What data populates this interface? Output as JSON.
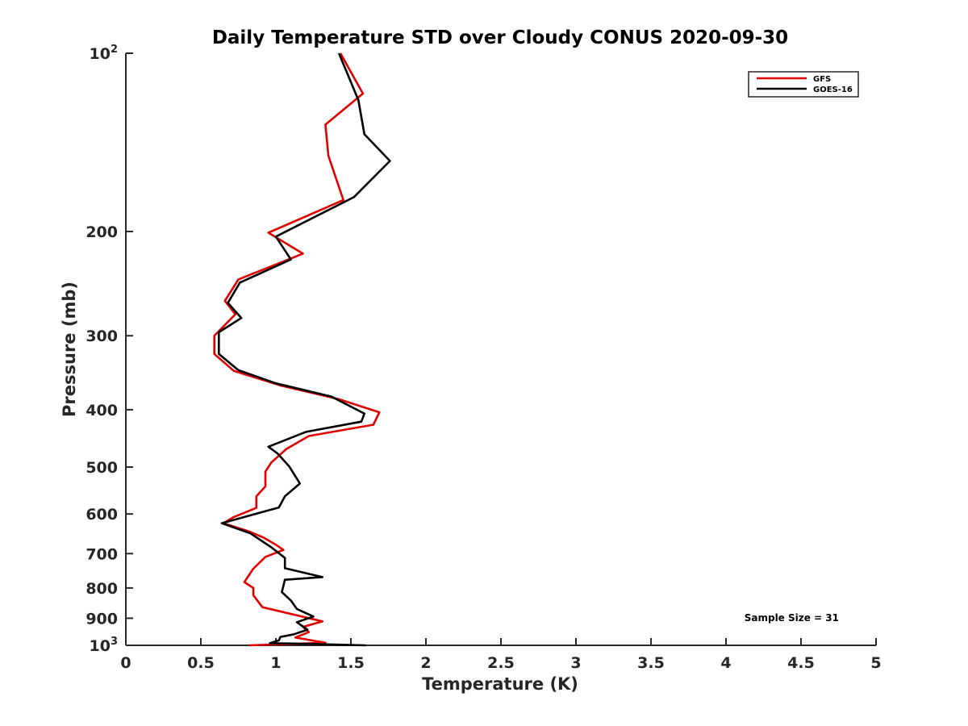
{
  "chart_data": {
    "type": "line",
    "title": "Daily Temperature STD over Cloudy CONUS 2020-09-30",
    "xlabel": "Temperature (K)",
    "ylabel": "Pressure (mb)",
    "xlim": [
      0,
      5
    ],
    "ylim": [
      100,
      1000
    ],
    "y_scale": "log",
    "y_reversed": true,
    "grid": false,
    "legend_position": "top-right",
    "x_ticks": [
      "0",
      "0.5",
      "1",
      "1.5",
      "2",
      "2.5",
      "3",
      "3.5",
      "4",
      "4.5",
      "5"
    ],
    "y_ticks": [
      {
        "value": 100,
        "base": "10",
        "exp": "2"
      },
      {
        "value": 200,
        "label": "200"
      },
      {
        "value": 300,
        "label": "300"
      },
      {
        "value": 400,
        "label": "400"
      },
      {
        "value": 500,
        "label": "500"
      },
      {
        "value": 600,
        "label": "600"
      },
      {
        "value": 700,
        "label": "700"
      },
      {
        "value": 800,
        "label": "800"
      },
      {
        "value": 900,
        "label": "900"
      },
      {
        "value": 1000,
        "base": "10",
        "exp": "3"
      }
    ],
    "annotation": "Sample Size = 31",
    "series": [
      {
        "name": "GFS",
        "color": "#e00000",
        "points": [
          [
            1.43,
            100
          ],
          [
            1.58,
            117
          ],
          [
            1.33,
            132
          ],
          [
            1.35,
            149
          ],
          [
            1.45,
            177
          ],
          [
            0.95,
            201
          ],
          [
            1.18,
            218
          ],
          [
            0.75,
            241
          ],
          [
            0.66,
            262
          ],
          [
            0.73,
            276
          ],
          [
            0.59,
            300
          ],
          [
            0.59,
            322
          ],
          [
            0.72,
            344
          ],
          [
            1.03,
            364
          ],
          [
            1.42,
            384
          ],
          [
            1.69,
            404
          ],
          [
            1.65,
            424
          ],
          [
            1.22,
            443
          ],
          [
            1.07,
            466
          ],
          [
            0.97,
            491
          ],
          [
            0.93,
            509
          ],
          [
            0.93,
            539
          ],
          [
            0.87,
            560
          ],
          [
            0.87,
            586
          ],
          [
            0.72,
            607
          ],
          [
            0.65,
            622
          ],
          [
            0.82,
            642
          ],
          [
            0.92,
            658
          ],
          [
            1.0,
            676
          ],
          [
            1.05,
            690
          ],
          [
            0.93,
            709
          ],
          [
            0.85,
            742
          ],
          [
            0.79,
            782
          ],
          [
            0.85,
            800
          ],
          [
            0.85,
            823
          ],
          [
            0.91,
            862
          ],
          [
            1.23,
            901
          ],
          [
            1.31,
            911
          ],
          [
            1.18,
            931
          ],
          [
            1.22,
            950
          ],
          [
            1.13,
            970
          ],
          [
            1.33,
            990
          ],
          [
            0.82,
            1000
          ]
        ]
      },
      {
        "name": "GOES-16",
        "color": "#000000",
        "points": [
          [
            1.42,
            100
          ],
          [
            1.55,
            120
          ],
          [
            1.59,
            137
          ],
          [
            1.76,
            152
          ],
          [
            1.52,
            175
          ],
          [
            1.0,
            204
          ],
          [
            1.1,
            223
          ],
          [
            0.76,
            244
          ],
          [
            0.68,
            264
          ],
          [
            0.77,
            280
          ],
          [
            0.62,
            296
          ],
          [
            0.62,
            322
          ],
          [
            0.75,
            343
          ],
          [
            1.0,
            361
          ],
          [
            1.37,
            380
          ],
          [
            1.59,
            406
          ],
          [
            1.57,
            419
          ],
          [
            1.2,
            436
          ],
          [
            0.95,
            462
          ],
          [
            1.01,
            474
          ],
          [
            1.09,
            499
          ],
          [
            1.16,
            533
          ],
          [
            1.06,
            560
          ],
          [
            1.02,
            585
          ],
          [
            0.64,
            622
          ],
          [
            0.83,
            647
          ],
          [
            0.97,
            683
          ],
          [
            1.06,
            712
          ],
          [
            1.06,
            741
          ],
          [
            1.31,
            767
          ],
          [
            1.06,
            775
          ],
          [
            1.04,
            813
          ],
          [
            1.1,
            840
          ],
          [
            1.14,
            868
          ],
          [
            1.25,
            894
          ],
          [
            1.14,
            914
          ],
          [
            1.21,
            941
          ],
          [
            1.12,
            958
          ],
          [
            1.03,
            968
          ],
          [
            1.02,
            981
          ],
          [
            0.96,
            992
          ],
          [
            1.12,
            993
          ],
          [
            1.6,
            1000
          ]
        ]
      }
    ]
  }
}
